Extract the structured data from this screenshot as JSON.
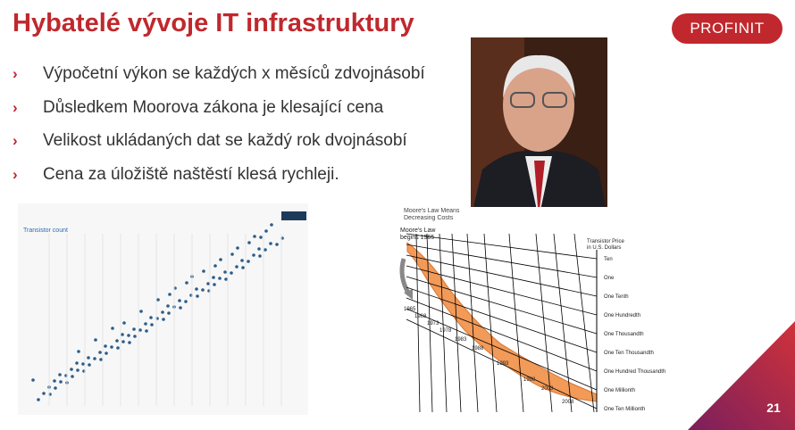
{
  "header": {
    "title": "Hybatelé vývoje IT infrastruktury",
    "logo": "PROFINIT"
  },
  "bullets": [
    "Výpočetní výkon se každých x měsíců zdvojnásobí",
    "Důsledkem Moorova zákona je klesající cena",
    "Velikost ukládaných dat se každý rok dvojnásobí",
    "Cena za úložiště naštěstí klesá rychleji."
  ],
  "transistor_chart": {
    "axis_label": "Transistor count"
  },
  "moore_chart": {
    "title_lines": [
      "Moore's Law Means",
      "Decreasing Costs"
    ],
    "start_lines": [
      "Moore's Law",
      "begins 1965"
    ],
    "axis_title_lines": [
      "Transistor Price",
      "in U.S. Dollars"
    ],
    "levels": [
      "Ten",
      "One",
      "One Tenth",
      "One Hundredth",
      "One Thousandth",
      "One Ten Thousandth",
      "One Hundred Thousandth",
      "One Millionth",
      "One Ten Millionth"
    ],
    "years": [
      "1965",
      "1968",
      "1973",
      "1978",
      "1983",
      "1988",
      "1993",
      "1998",
      "2003",
      "2008"
    ]
  },
  "page_number": "21"
}
